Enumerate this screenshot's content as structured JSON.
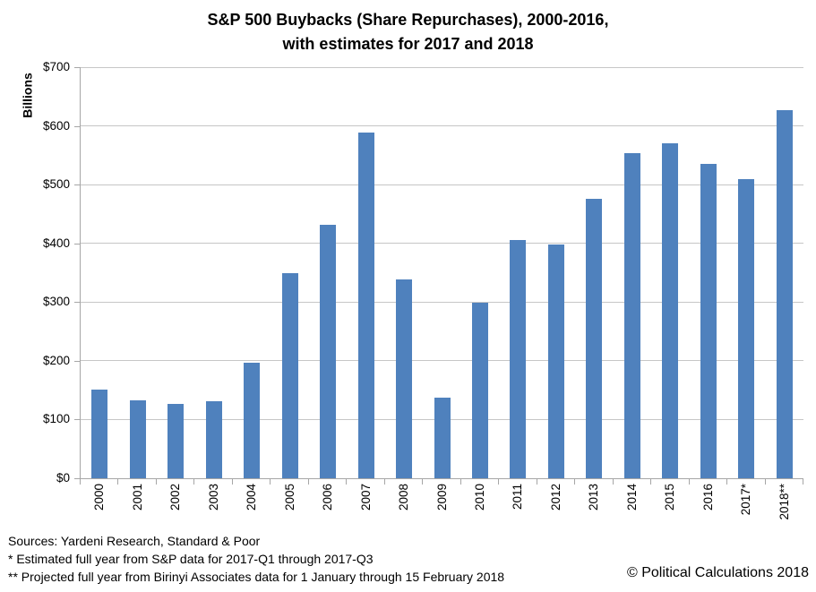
{
  "chart": {
    "title_line1": "S&P 500 Buybacks (Share Repurchases), 2000-2016,",
    "title_line2": "with estimates for 2017 and 2018",
    "ylabel": "Billions"
  },
  "chart_data": {
    "type": "bar",
    "title": "S&P 500 Buybacks (Share Repurchases), 2000-2016, with estimates for 2017 and 2018",
    "xlabel": "",
    "ylabel": "Billions",
    "categories": [
      "2000",
      "2001",
      "2002",
      "2003",
      "2004",
      "2005",
      "2006",
      "2007",
      "2008",
      "2009",
      "2010",
      "2011",
      "2012",
      "2013",
      "2014",
      "2015",
      "2016",
      "2017*",
      "2018**"
    ],
    "values": [
      151,
      132,
      127,
      131,
      197,
      349,
      431,
      588,
      338,
      137,
      299,
      405,
      398,
      476,
      553,
      571,
      536,
      509,
      627
    ],
    "units": "USD billions",
    "ylim": [
      0,
      700
    ],
    "ytick_step": 100,
    "ytick_labels": [
      "$0",
      "$100",
      "$200",
      "$300",
      "$400",
      "$500",
      "$600",
      "$700"
    ],
    "grid": true,
    "legend": false,
    "bar_color": "#4f81bd",
    "gridline_color": "#c6c6c6",
    "axis_color": "#a6a6a6"
  },
  "footnotes": [
    "Sources: Yardeni Research, Standard & Poor",
    "* Estimated full year from S&P data for 2017-Q1 through 2017-Q3",
    "** Projected full year from Birinyi Associates data for 1 January through 15 February 2018"
  ],
  "copyright": "© Political Calculations 2018"
}
